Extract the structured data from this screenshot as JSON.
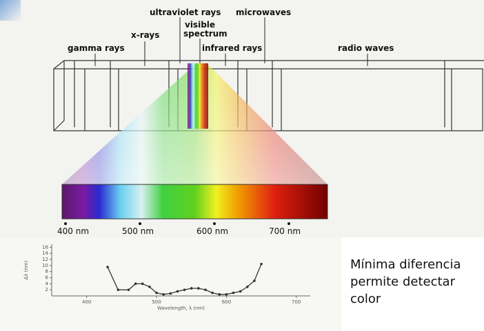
{
  "diagram": {
    "labels": {
      "ultraviolet": "ultraviolet rays",
      "microwaves": "microwaves",
      "visible_1": "visible",
      "visible_2": "spectrum",
      "xrays": "x-rays",
      "gamma": "gamma rays",
      "infrared": "infrared rays",
      "radio": "radio waves"
    },
    "scale": [
      "400 nm",
      "500 nm",
      "600 nm",
      "700 nm"
    ]
  },
  "chart_data": {
    "type": "line",
    "x_label": "Wavelength, λ (nm)",
    "y_label": "Δλ (nm)",
    "x": [
      430,
      445,
      460,
      470,
      480,
      490,
      500,
      510,
      520,
      530,
      540,
      550,
      560,
      570,
      580,
      590,
      600,
      610,
      620,
      630,
      640,
      650
    ],
    "values": [
      9.5,
      2,
      2,
      4,
      4,
      3,
      1,
      0.5,
      0.8,
      1.5,
      2,
      2.5,
      2.5,
      2,
      1,
      0.5,
      0.5,
      1,
      1.5,
      3,
      5,
      10.5
    ],
    "color": "#333333",
    "xlim": [
      350,
      720
    ],
    "ylim": [
      0,
      17
    ],
    "xticks": [
      400,
      500,
      600,
      700
    ],
    "yticks": [
      2,
      4,
      6,
      8,
      10,
      12,
      14,
      16
    ]
  },
  "text": [
    "Mínima diferencia",
    "permite detectar",
    "color"
  ]
}
